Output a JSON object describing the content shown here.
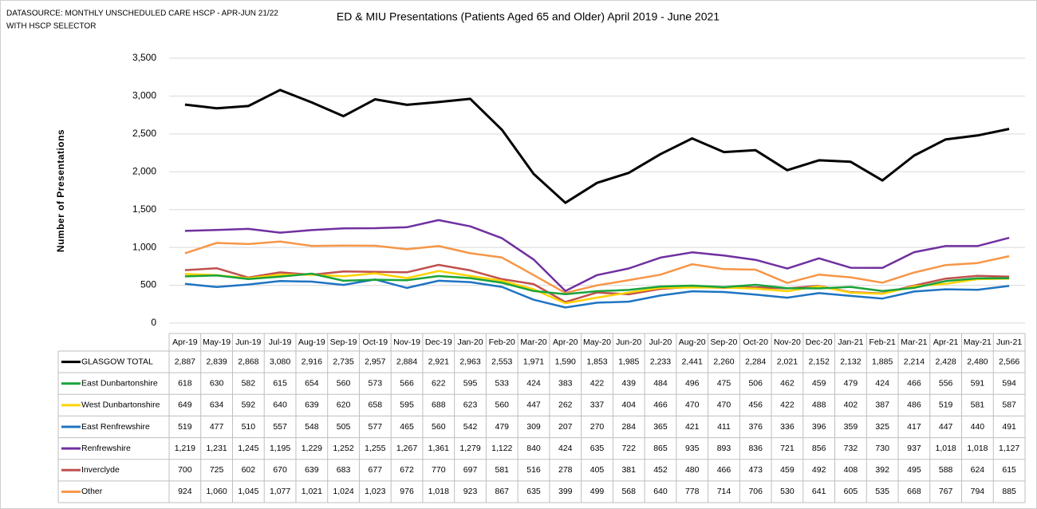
{
  "chart_data": {
    "type": "line",
    "title": "ED & MIU Presentations (Patients Aged 65 and Older) April 2019 - June 2021",
    "annotations": [
      "DATASOURCE: MONTHLY UNSCHEDULED CARE HSCP - APR-JUN 21/22",
      "WITH HSCP SELECTOR"
    ],
    "y_label": "Number of Presentations",
    "categories": [
      "Apr-19",
      "May-19",
      "Jun-19",
      "Jul-19",
      "Aug-19",
      "Sep-19",
      "Oct-19",
      "Nov-19",
      "Dec-19",
      "Jan-20",
      "Feb-20",
      "Mar-20",
      "Apr-20",
      "May-20",
      "Jun-20",
      "Jul-20",
      "Aug-20",
      "Sep-20",
      "Oct-20",
      "Nov-20",
      "Dec-20",
      "Jan-21",
      "Feb-21",
      "Mar-21",
      "Apr-21",
      "May-21",
      "Jun-21"
    ],
    "ylim": [
      0,
      3500
    ],
    "yticks": [
      0,
      500,
      {
        "value": 1000,
        "label": "1,000"
      },
      {
        "value": 1500,
        "label": "1,500"
      },
      {
        "value": 2000,
        "label": "2,000"
      },
      {
        "value": 2500,
        "label": "2,500"
      },
      {
        "value": 3000,
        "label": "3,000"
      },
      {
        "value": 3500,
        "label": "3,500"
      }
    ],
    "grid": true,
    "series": [
      {
        "name": "GLASGOW TOTAL",
        "color": "#000000",
        "values": [
          2887,
          2839,
          2868,
          3080,
          2916,
          2735,
          2957,
          2884,
          2921,
          2963,
          2553,
          1971,
          1590,
          1853,
          1985,
          2233,
          2441,
          2260,
          2284,
          2021,
          2152,
          2132,
          1885,
          2214,
          2428,
          2480,
          2566
        ],
        "value_labels": [
          "2,887",
          "2,839",
          "2,868",
          "3,080",
          "2,916",
          "2,735",
          "2,957",
          "2,884",
          "2,921",
          "2,963",
          "2,553",
          "1,971",
          "1,590",
          "1,853",
          "1,985",
          "2,233",
          "2,441",
          "2,260",
          "2,284",
          "2,021",
          "2,152",
          "2,132",
          "1,885",
          "2,214",
          "2,428",
          "2,480",
          "2,566"
        ]
      },
      {
        "name": "East Dunbartonshire",
        "color": "#19a33b",
        "values": [
          618,
          630,
          582,
          615,
          654,
          560,
          573,
          566,
          622,
          595,
          533,
          424,
          383,
          422,
          439,
          484,
          496,
          475,
          506,
          462,
          459,
          479,
          424,
          466,
          556,
          591,
          594
        ]
      },
      {
        "name": "West Dunbartonshire",
        "color": "#ffd200",
        "values": [
          649,
          634,
          592,
          640,
          639,
          620,
          658,
          595,
          688,
          623,
          560,
          447,
          262,
          337,
          404,
          466,
          470,
          470,
          456,
          422,
          488,
          402,
          387,
          486,
          519,
          581,
          587
        ]
      },
      {
        "name": "East Renfrewshire",
        "color": "#1f74c2",
        "values": [
          519,
          477,
          510,
          557,
          548,
          505,
          577,
          465,
          560,
          542,
          479,
          309,
          207,
          270,
          284,
          365,
          421,
          411,
          376,
          336,
          396,
          359,
          325,
          417,
          447,
          440,
          491
        ]
      },
      {
        "name": "Renfrewshire",
        "color": "#7030a0",
        "values": [
          1219,
          1231,
          1245,
          1195,
          1229,
          1252,
          1255,
          1267,
          1361,
          1279,
          1122,
          840,
          424,
          635,
          722,
          865,
          935,
          893,
          836,
          721,
          856,
          732,
          730,
          937,
          1018,
          1018,
          1127
        ],
        "value_labels": [
          "1,219",
          "1,231",
          "1,245",
          "1,195",
          "1,229",
          "1,252",
          "1,255",
          "1,267",
          "1,361",
          "1,279",
          "1,122",
          "840",
          "424",
          "635",
          "722",
          "865",
          "935",
          "893",
          "836",
          "721",
          "856",
          "732",
          "730",
          "937",
          "1,018",
          "1,018",
          "1,127"
        ]
      },
      {
        "name": "Inverclyde",
        "color": "#c0504d",
        "values": [
          700,
          725,
          602,
          670,
          639,
          683,
          677,
          672,
          770,
          697,
          581,
          516,
          278,
          405,
          381,
          452,
          480,
          466,
          473,
          459,
          492,
          408,
          392,
          495,
          588,
          624,
          615
        ]
      },
      {
        "name": "Other",
        "color": "#f79646",
        "values": [
          924,
          1060,
          1045,
          1077,
          1021,
          1024,
          1023,
          976,
          1018,
          923,
          867,
          635,
          399,
          499,
          568,
          640,
          778,
          714,
          706,
          530,
          641,
          605,
          535,
          668,
          767,
          794,
          885
        ],
        "value_labels": [
          "924",
          "1,060",
          "1,045",
          "1,077",
          "1,021",
          "1,024",
          "1,023",
          "976",
          "1,018",
          "923",
          "867",
          "635",
          "399",
          "499",
          "568",
          "640",
          "778",
          "714",
          "706",
          "530",
          "641",
          "605",
          "535",
          "668",
          "767",
          "794",
          "885"
        ]
      }
    ]
  }
}
